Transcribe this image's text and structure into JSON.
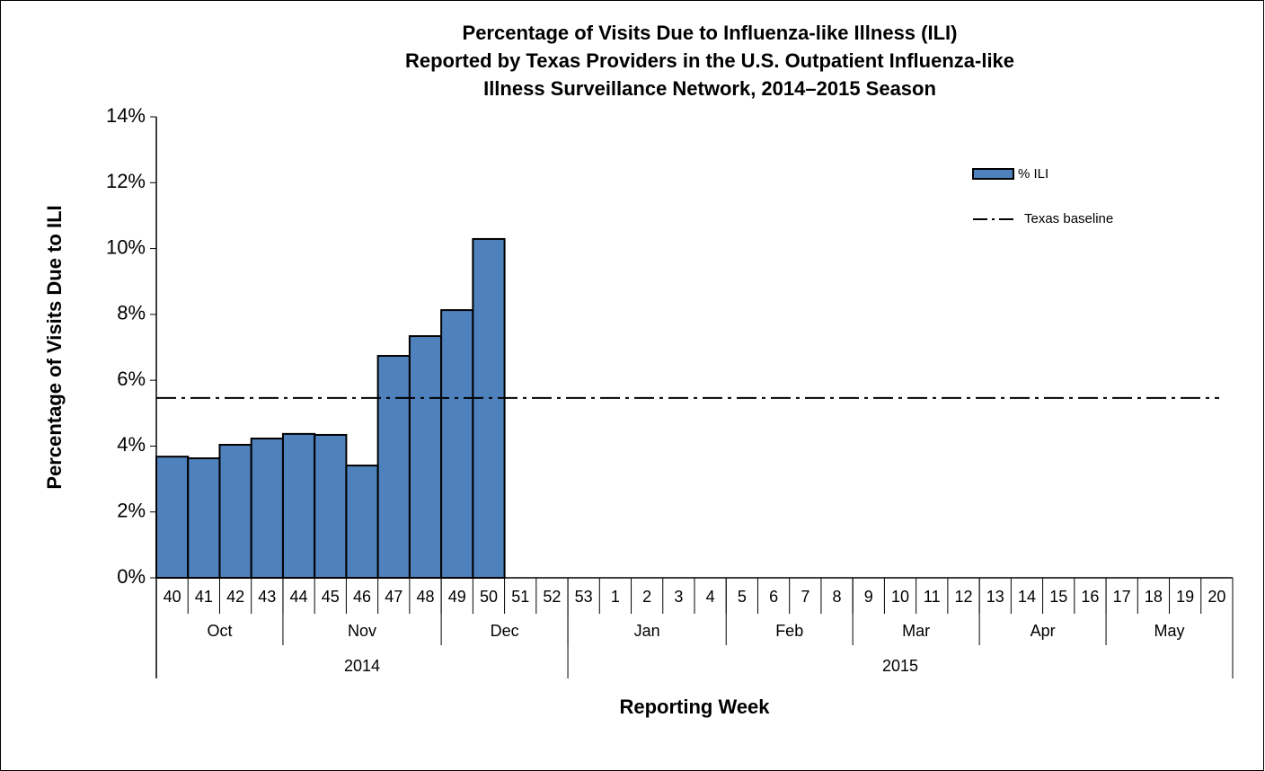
{
  "chart_data": {
    "type": "bar",
    "title": [
      "Percentage of Visits Due to Influenza-like Illness (ILI)",
      "Reported by Texas Providers in the U.S. Outpatient Influenza-like",
      "Illness Surveillance Network, 2014–2015 Season"
    ],
    "y_axis_label": "Percentage of Visits Due to ILI",
    "x_axis_label": "Reporting Week",
    "categories": [
      "40",
      "41",
      "42",
      "43",
      "44",
      "45",
      "46",
      "47",
      "48",
      "49",
      "50",
      "51",
      "52",
      "53",
      "1",
      "2",
      "3",
      "4",
      "5",
      "6",
      "7",
      "8",
      "9",
      "10",
      "11",
      "12",
      "13",
      "14",
      "15",
      "16",
      "17",
      "18",
      "19",
      "20"
    ],
    "months": [
      {
        "label": "Oct",
        "span": 4
      },
      {
        "label": "Nov",
        "span": 5
      },
      {
        "label": "Dec",
        "span": 4
      },
      {
        "label": "Jan",
        "span": 5
      },
      {
        "label": "Feb",
        "span": 4
      },
      {
        "label": "Mar",
        "span": 4
      },
      {
        "label": "Apr",
        "span": 4
      },
      {
        "label": "May",
        "span": 4
      }
    ],
    "years": [
      {
        "label": "2014",
        "span": 13
      },
      {
        "label": "2015",
        "span": 21
      }
    ],
    "series": [
      {
        "name": "% ILI",
        "color": "#4f81bd",
        "values": [
          3.68,
          3.63,
          4.04,
          4.23,
          4.37,
          4.34,
          3.41,
          6.74,
          7.34,
          8.13,
          10.29,
          null,
          null,
          null,
          null,
          null,
          null,
          null,
          null,
          null,
          null,
          null,
          null,
          null,
          null,
          null,
          null,
          null,
          null,
          null,
          null,
          null,
          null,
          null
        ]
      }
    ],
    "baseline": {
      "name": "Texas baseline",
      "value": 5.46,
      "color": "#000000"
    },
    "ylim": [
      0,
      14
    ],
    "yticks": [
      {
        "value": 0,
        "label": "0%"
      },
      {
        "value": 2,
        "label": "2%"
      },
      {
        "value": 4,
        "label": "4%"
      },
      {
        "value": 6,
        "label": "6%"
      },
      {
        "value": 8,
        "label": "8%"
      },
      {
        "value": 10,
        "label": "10%"
      },
      {
        "value": 12,
        "label": "12%"
      },
      {
        "value": 14,
        "label": "14%"
      }
    ],
    "legend": "top-right"
  }
}
